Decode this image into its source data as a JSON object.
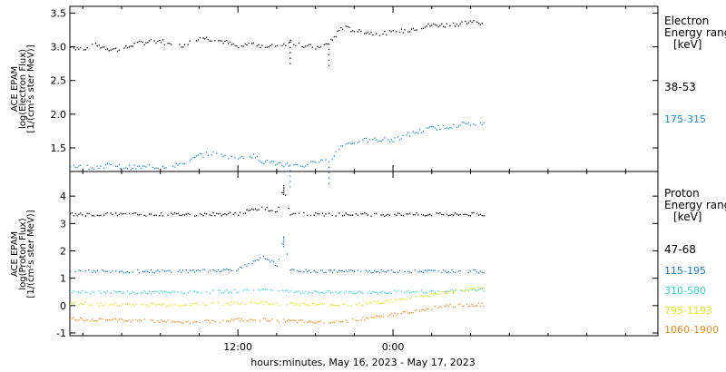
{
  "chart_data": [
    {
      "type": "scatter",
      "panel": "electron",
      "ylabel_lines": [
        "ACE EPAM",
        "log(Electron Flux)",
        "[1/(cm²s ster MeV)]"
      ],
      "legend_title_lines": [
        "Electron",
        "Energy ranges",
        "[keV]"
      ],
      "ylim": [
        1.15,
        3.6
      ],
      "yticks": [
        "1.5",
        "2.0",
        "2.5",
        "3.0",
        "3.5"
      ],
      "series": [
        {
          "name": "38-53",
          "color": "#000000",
          "points": [
            [
              -1.0,
              3.0
            ],
            [
              0.0,
              2.98
            ],
            [
              1.0,
              3.03
            ],
            [
              2.0,
              2.98
            ],
            [
              3.0,
              2.96
            ],
            [
              4.0,
              3.05
            ],
            [
              5.0,
              3.08
            ],
            [
              6.0,
              3.1
            ],
            [
              7.0,
              3.0
            ],
            [
              8.0,
              3.05
            ],
            [
              9.0,
              3.15
            ],
            [
              10.0,
              3.12
            ],
            [
              11.0,
              3.08
            ],
            [
              12.0,
              3.0
            ],
            [
              13.0,
              3.06
            ],
            [
              14.0,
              3.02
            ],
            [
              15.0,
              3.02
            ],
            [
              16.0,
              3.08
            ],
            [
              17.0,
              3.02
            ],
            [
              18.0,
              3.0
            ],
            [
              19.0,
              3.05
            ],
            [
              20.0,
              3.3
            ],
            [
              21.0,
              3.25
            ],
            [
              22.0,
              3.22
            ],
            [
              23.0,
              3.2
            ],
            [
              24.0,
              3.22
            ],
            [
              25.0,
              3.25
            ],
            [
              26.0,
              3.3
            ],
            [
              27.0,
              3.33
            ],
            [
              28.0,
              3.33
            ],
            [
              29.0,
              3.35
            ],
            [
              30.0,
              3.38
            ],
            [
              31.0,
              3.36
            ]
          ]
        },
        {
          "name": "175-315",
          "color": "#1a8fd8",
          "points": [
            [
              -1.0,
              1.25
            ],
            [
              0.0,
              1.22
            ],
            [
              1.0,
              1.23
            ],
            [
              2.0,
              1.25
            ],
            [
              3.0,
              1.22
            ],
            [
              4.0,
              1.22
            ],
            [
              5.0,
              1.22
            ],
            [
              6.0,
              1.23
            ],
            [
              7.0,
              1.25
            ],
            [
              8.0,
              1.28
            ],
            [
              9.0,
              1.4
            ],
            [
              10.0,
              1.42
            ],
            [
              11.0,
              1.38
            ],
            [
              12.0,
              1.35
            ],
            [
              13.0,
              1.4
            ],
            [
              14.0,
              1.3
            ],
            [
              15.0,
              1.28
            ],
            [
              16.0,
              1.25
            ],
            [
              17.0,
              1.24
            ],
            [
              18.0,
              1.3
            ],
            [
              19.0,
              1.3
            ],
            [
              20.0,
              1.55
            ],
            [
              21.0,
              1.6
            ],
            [
              22.0,
              1.62
            ],
            [
              23.0,
              1.63
            ],
            [
              24.0,
              1.62
            ],
            [
              25.0,
              1.7
            ],
            [
              26.0,
              1.75
            ],
            [
              27.0,
              1.8
            ],
            [
              28.0,
              1.82
            ],
            [
              29.0,
              1.85
            ],
            [
              30.0,
              1.88
            ],
            [
              31.0,
              1.86
            ]
          ]
        }
      ]
    },
    {
      "type": "scatter",
      "panel": "proton",
      "ylabel_lines": [
        "ACE EPAM",
        "log(Proton Flux)",
        "[1/(cm²s ster MeV)]"
      ],
      "legend_title_lines": [
        "Proton",
        "Energy ranges",
        "[keV]"
      ],
      "ylim": [
        -1.1,
        4.9
      ],
      "yticks": [
        "-1",
        "0",
        "1",
        "2",
        "3",
        "4"
      ],
      "series": [
        {
          "name": "47-68",
          "color": "#000000",
          "points": [
            [
              -1.0,
              3.35
            ],
            [
              0.0,
              3.35
            ],
            [
              2.0,
              3.35
            ],
            [
              4.0,
              3.35
            ],
            [
              6.0,
              3.35
            ],
            [
              8.0,
              3.35
            ],
            [
              10.0,
              3.35
            ],
            [
              12.0,
              3.38
            ],
            [
              13.0,
              3.5
            ],
            [
              14.0,
              3.6
            ],
            [
              15.0,
              3.4
            ],
            [
              15.5,
              4.4
            ],
            [
              16.0,
              3.37
            ],
            [
              18.0,
              3.35
            ],
            [
              20.0,
              3.35
            ],
            [
              22.0,
              3.35
            ],
            [
              24.0,
              3.35
            ],
            [
              26.0,
              3.35
            ],
            [
              28.0,
              3.35
            ],
            [
              30.0,
              3.35
            ],
            [
              31.0,
              3.35
            ]
          ]
        },
        {
          "name": "115-195",
          "color": "#1a78d0",
          "points": [
            [
              -1.0,
              1.3
            ],
            [
              0.0,
              1.28
            ],
            [
              2.0,
              1.28
            ],
            [
              4.0,
              1.27
            ],
            [
              6.0,
              1.27
            ],
            [
              8.0,
              1.28
            ],
            [
              10.0,
              1.3
            ],
            [
              12.0,
              1.35
            ],
            [
              13.0,
              1.55
            ],
            [
              14.0,
              1.8
            ],
            [
              15.0,
              1.5
            ],
            [
              15.5,
              2.5
            ],
            [
              16.0,
              1.3
            ],
            [
              18.0,
              1.27
            ],
            [
              20.0,
              1.27
            ],
            [
              22.0,
              1.27
            ],
            [
              24.0,
              1.27
            ],
            [
              26.0,
              1.27
            ],
            [
              28.0,
              1.28
            ],
            [
              30.0,
              1.27
            ],
            [
              31.0,
              1.27
            ]
          ]
        },
        {
          "name": "310-580",
          "color": "#33d6d0",
          "points": [
            [
              -1.0,
              0.55
            ],
            [
              0.0,
              0.52
            ],
            [
              2.0,
              0.5
            ],
            [
              4.0,
              0.5
            ],
            [
              6.0,
              0.5
            ],
            [
              8.0,
              0.5
            ],
            [
              10.0,
              0.52
            ],
            [
              12.0,
              0.55
            ],
            [
              14.0,
              0.6
            ],
            [
              16.0,
              0.52
            ],
            [
              18.0,
              0.5
            ],
            [
              20.0,
              0.5
            ],
            [
              22.0,
              0.5
            ],
            [
              24.0,
              0.52
            ],
            [
              26.0,
              0.52
            ],
            [
              28.0,
              0.55
            ],
            [
              30.0,
              0.58
            ],
            [
              31.0,
              0.6
            ]
          ]
        },
        {
          "name": "795-1193",
          "color": "#e3e31a",
          "points": [
            [
              -1.0,
              0.1
            ],
            [
              0.0,
              0.08
            ],
            [
              2.0,
              0.05
            ],
            [
              4.0,
              0.05
            ],
            [
              6.0,
              0.05
            ],
            [
              8.0,
              0.05
            ],
            [
              10.0,
              0.08
            ],
            [
              12.0,
              0.1
            ],
            [
              14.0,
              0.12
            ],
            [
              16.0,
              0.08
            ],
            [
              18.0,
              0.05
            ],
            [
              20.0,
              0.05
            ],
            [
              22.0,
              0.1
            ],
            [
              24.0,
              0.2
            ],
            [
              26.0,
              0.35
            ],
            [
              28.0,
              0.5
            ],
            [
              30.0,
              0.6
            ],
            [
              31.0,
              0.65
            ]
          ]
        },
        {
          "name": "1060-1900",
          "color": "#f08a1a",
          "points": [
            [
              -1.0,
              -0.45
            ],
            [
              0.0,
              -0.48
            ],
            [
              2.0,
              -0.5
            ],
            [
              4.0,
              -0.52
            ],
            [
              6.0,
              -0.55
            ],
            [
              8.0,
              -0.58
            ],
            [
              10.0,
              -0.55
            ],
            [
              12.0,
              -0.5
            ],
            [
              14.0,
              -0.5
            ],
            [
              16.0,
              -0.55
            ],
            [
              18.0,
              -0.6
            ],
            [
              20.0,
              -0.55
            ],
            [
              22.0,
              -0.45
            ],
            [
              24.0,
              -0.3
            ],
            [
              26.0,
              -0.15
            ],
            [
              28.0,
              0.0
            ],
            [
              30.0,
              0.05
            ],
            [
              31.0,
              0.05
            ]
          ]
        }
      ]
    }
  ],
  "x_axis": {
    "xlim": [
      -1.0,
      44.5
    ],
    "ticks": [
      {
        "x": 12.0,
        "label": "12:00"
      },
      {
        "x": 24.0,
        "label": "0:00"
      }
    ],
    "minor_ticks": [
      0,
      3,
      6,
      9,
      15,
      18,
      21,
      27,
      30,
      33,
      36,
      39,
      42
    ],
    "label": "hours:minutes, May 16, 2023 - May 17, 2023"
  },
  "colors": {
    "frame": "#000000",
    "background": "#ffffff"
  }
}
